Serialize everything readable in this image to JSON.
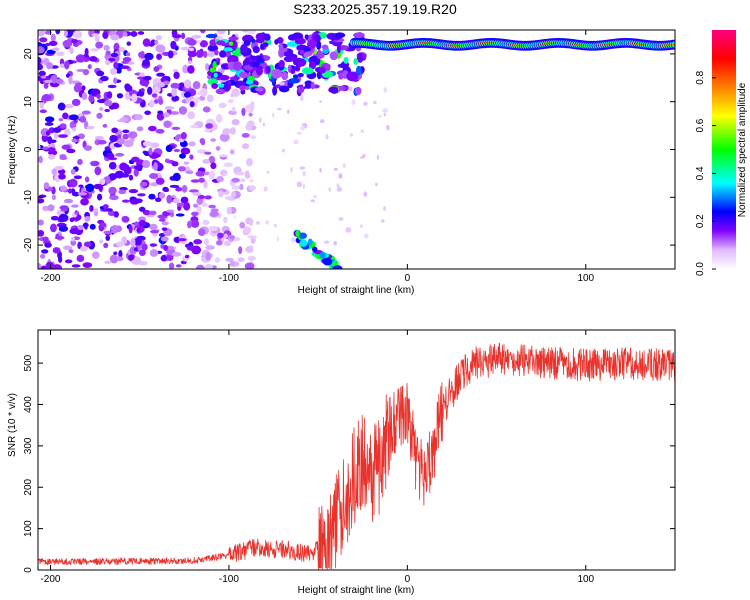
{
  "page": {
    "title": "S233.2025.357.19.19.R20"
  },
  "chart_data": [
    {
      "type": "heatmap",
      "title": "S233.2025.357.19.19.R20",
      "xlabel": "Height of straight line (km)",
      "ylabel": "Frequency (Hz)",
      "xlim": [
        -207,
        150
      ],
      "ylim": [
        -25,
        25
      ],
      "xticks": [
        -200,
        -100,
        0,
        100
      ],
      "yticks": [
        -20,
        -10,
        0,
        10,
        20
      ],
      "xtick_labels": [
        "-200",
        "-100",
        "0",
        "100"
      ],
      "ytick_labels": [
        "-20",
        "-10",
        "0",
        "10",
        "20"
      ],
      "colorbar": {
        "label": "Normalized spectral amplitude",
        "range": [
          0,
          1
        ],
        "ticks": [
          0.0,
          0.2,
          0.4,
          0.6,
          0.8
        ],
        "tick_labels": [
          "0.0",
          "0.2",
          "0.4",
          "0.6",
          "0.8"
        ],
        "colors": [
          "#ffffff",
          "#e0b8ff",
          "#8000ff",
          "#0000ff",
          "#00ffff",
          "#00ff00",
          "#ffff00",
          "#ff8000",
          "#ff0000",
          "#ff0080"
        ]
      },
      "features": {
        "noise_region_x_km": [
          -207,
          -100
        ],
        "noise_mean_amplitude": 0.22,
        "strong_band": {
          "x_km": [
            -110,
            -25
          ],
          "freq_hz": [
            12,
            24
          ],
          "amplitude": 0.35
        },
        "signal_line": {
          "x_km": [
            -30,
            150
          ],
          "freq_hz": 22,
          "amplitude": 0.85
        },
        "descending_track": {
          "x_km": [
            -62,
            -38
          ],
          "freq_hz": [
            -18,
            -25
          ],
          "amplitude": 0.4
        }
      }
    },
    {
      "type": "line",
      "xlabel": "Height of straight line (km)",
      "ylabel": "SNR (10 * v/v)",
      "xlim": [
        -207,
        150
      ],
      "ylim": [
        0,
        580
      ],
      "xticks": [
        -200,
        -100,
        0,
        100
      ],
      "yticks": [
        0,
        100,
        200,
        300,
        400,
        500
      ],
      "xtick_labels": [
        "-200",
        "-100",
        "0",
        "100"
      ],
      "ytick_labels": [
        "0",
        "100",
        "200",
        "300",
        "400",
        "500"
      ],
      "series": [
        {
          "name": "SNR",
          "color": "#e8322c",
          "profile_x": [
            -207,
            -120,
            -100,
            -85,
            -70,
            -55,
            -45,
            -40,
            -35,
            -30,
            -25,
            -20,
            -15,
            -10,
            -5,
            0,
            5,
            10,
            15,
            20,
            25,
            30,
            40,
            50,
            70,
            100,
            130,
            150
          ],
          "profile_y": [
            20,
            22,
            35,
            55,
            50,
            40,
            60,
            110,
            160,
            230,
            270,
            220,
            260,
            340,
            360,
            390,
            260,
            230,
            300,
            390,
            430,
            470,
            500,
            510,
            505,
            495,
            500,
            490
          ]
        }
      ]
    }
  ]
}
